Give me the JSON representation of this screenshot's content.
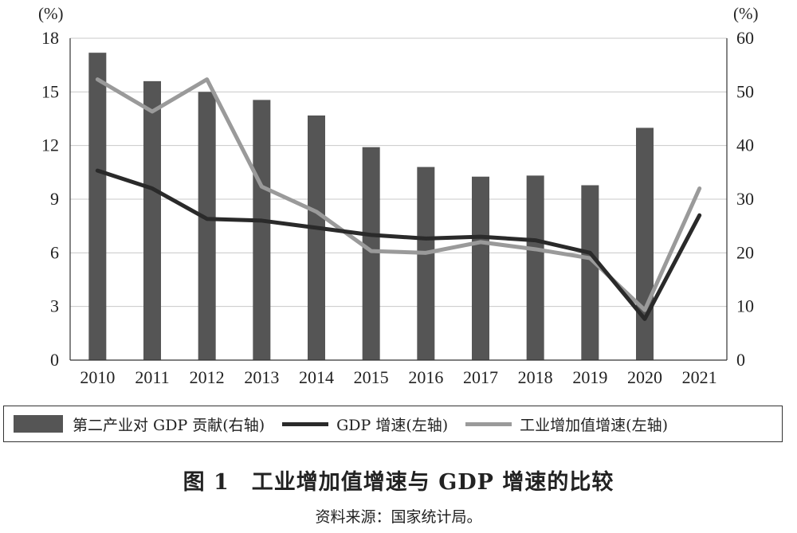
{
  "chart_data": {
    "type": "bar",
    "title": "图 1　工业增加值增速与 GDP 增速的比较",
    "source": "资料来源：国家统计局。",
    "left_unit": "(%)",
    "right_unit": "(%)",
    "categories": [
      "2010",
      "2011",
      "2012",
      "2013",
      "2014",
      "2015",
      "2016",
      "2017",
      "2018",
      "2019",
      "2020",
      "2021"
    ],
    "y_left": {
      "min": 0,
      "max": 18,
      "ticks": [
        "0",
        "3",
        "6",
        "9",
        "12",
        "15",
        "18"
      ]
    },
    "y_right": {
      "min": 0,
      "max": 60,
      "ticks": [
        "0",
        "10",
        "20",
        "30",
        "40",
        "50",
        "60"
      ]
    },
    "grid": "horizontal",
    "legend_position": "bottom",
    "series": [
      {
        "name": "第二产业对 GDP 贡献(右轴)",
        "type": "bar",
        "axis": "right",
        "color": "#555555",
        "values": [
          57.3,
          52.0,
          50.0,
          48.5,
          45.6,
          39.7,
          36.0,
          34.2,
          34.4,
          32.6,
          43.3,
          null
        ]
      },
      {
        "name": "GDP 增速(左轴)",
        "type": "line",
        "axis": "left",
        "color": "#2a2a2a",
        "values": [
          10.6,
          9.6,
          7.9,
          7.8,
          7.4,
          7.0,
          6.8,
          6.9,
          6.7,
          6.0,
          2.3,
          8.1
        ]
      },
      {
        "name": "工业增加值增速(左轴)",
        "type": "line",
        "axis": "left",
        "color": "#9a9a9a",
        "values": [
          15.7,
          13.9,
          15.7,
          9.7,
          8.3,
          6.1,
          6.0,
          6.6,
          6.2,
          5.7,
          2.8,
          9.6
        ]
      }
    ]
  }
}
